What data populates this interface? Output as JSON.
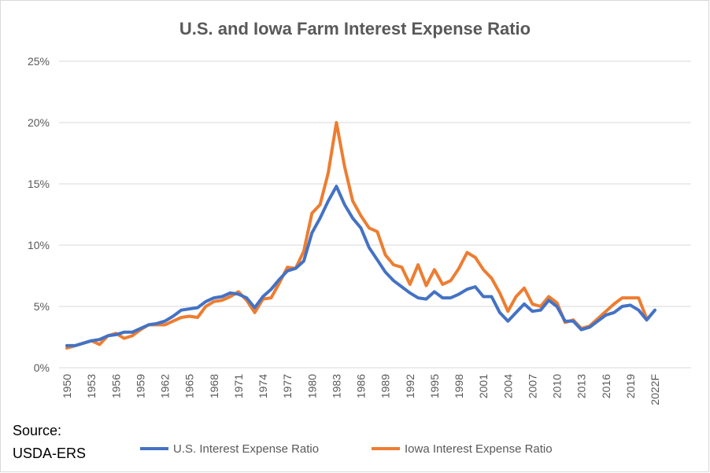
{
  "chart_data": {
    "type": "line",
    "title": "U.S. and Iowa Farm Interest Expense Ratio",
    "source": [
      "Source:",
      "USDA-ERS"
    ],
    "categories": [
      "1950",
      null,
      null,
      "1953",
      null,
      null,
      "1956",
      null,
      null,
      "1959",
      null,
      null,
      "1962",
      null,
      null,
      "1965",
      null,
      null,
      "1968",
      null,
      null,
      "1971",
      null,
      null,
      "1974",
      null,
      null,
      "1977",
      null,
      null,
      "1980",
      null,
      null,
      "1983",
      null,
      null,
      "1986",
      null,
      null,
      "1989",
      null,
      null,
      "1992",
      null,
      null,
      "1995",
      null,
      null,
      "1998",
      null,
      null,
      "2001",
      null,
      null,
      "2004",
      null,
      null,
      "2007",
      null,
      null,
      "2010",
      null,
      null,
      "2013",
      null,
      null,
      "2016",
      null,
      null,
      "2019",
      null,
      null,
      "2022F"
    ],
    "series": [
      {
        "name": "U.S. Interest Expense Ratio",
        "color": "#4472c4",
        "values": [
          1.8,
          1.8,
          2.0,
          2.2,
          2.3,
          2.6,
          2.7,
          2.9,
          2.9,
          3.2,
          3.5,
          3.6,
          3.8,
          4.2,
          4.7,
          4.8,
          4.9,
          5.4,
          5.7,
          5.8,
          6.1,
          6.0,
          5.7,
          4.9,
          5.8,
          6.4,
          7.2,
          7.9,
          8.1,
          8.7,
          11.0,
          12.2,
          13.6,
          14.8,
          13.3,
          12.2,
          11.4,
          9.8,
          8.8,
          7.8,
          7.1,
          6.6,
          6.1,
          5.7,
          5.6,
          6.2,
          5.7,
          5.7,
          6.0,
          6.4,
          6.6,
          5.8,
          5.8,
          4.5,
          3.8,
          4.5,
          5.2,
          4.6,
          4.7,
          5.5,
          5.0,
          3.8,
          3.8,
          3.1,
          3.3,
          3.8,
          4.3,
          4.5,
          5.0,
          5.1,
          4.7,
          3.9,
          4.7
        ]
      },
      {
        "name": "Iowa Interest Expense Ratio",
        "color": "#ed7d31",
        "values": [
          1.6,
          1.8,
          2.0,
          2.2,
          1.9,
          2.6,
          2.8,
          2.4,
          2.6,
          3.1,
          3.5,
          3.5,
          3.5,
          3.8,
          4.1,
          4.2,
          4.1,
          5.0,
          5.4,
          5.5,
          5.8,
          6.2,
          5.5,
          4.5,
          5.6,
          5.7,
          6.9,
          8.2,
          8.1,
          9.5,
          12.6,
          13.3,
          15.9,
          20.0,
          16.4,
          13.6,
          12.4,
          11.4,
          11.1,
          9.2,
          8.4,
          8.2,
          6.8,
          8.4,
          6.7,
          8.0,
          6.8,
          7.1,
          8.1,
          9.4,
          9.0,
          8.0,
          7.3,
          6.1,
          4.6,
          5.8,
          6.5,
          5.2,
          5.0,
          5.8,
          5.3,
          3.7,
          3.9,
          3.2,
          3.4,
          4.0,
          4.6,
          5.2,
          5.7,
          5.7,
          5.7,
          4.0,
          null
        ]
      }
    ],
    "ylim": [
      0,
      25
    ],
    "yticks": [
      {
        "value": 0,
        "label": "0%"
      },
      {
        "value": 5,
        "label": "5%"
      },
      {
        "value": 10,
        "label": "10%"
      },
      {
        "value": 15,
        "label": "15%"
      },
      {
        "value": 20,
        "label": "20%"
      },
      {
        "value": 25,
        "label": "25%"
      }
    ],
    "grid": true,
    "legend": "bottom"
  }
}
